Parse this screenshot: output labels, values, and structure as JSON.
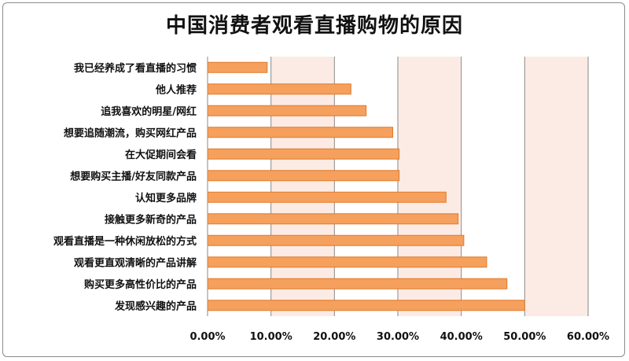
{
  "chart_data": {
    "type": "bar",
    "orientation": "horizontal",
    "title": "中国消费者观看直播购物的原因",
    "xlabel": "",
    "ylabel": "",
    "xlim": [
      0,
      0.6
    ],
    "tick_values": [
      0,
      0.1,
      0.2,
      0.3,
      0.4,
      0.5,
      0.6
    ],
    "tick_labels": [
      "0.00%",
      "10.00%",
      "20.00%",
      "30.00%",
      "40.00%",
      "50.00%",
      "60.00%"
    ],
    "grid": true,
    "legend": "none",
    "categories": [
      "我已经养成了看直播的习惯",
      "他人推荐",
      "追我喜欢的明星/网红",
      "想要追随潮流，购买网红产品",
      "在大促期间会看",
      "想要购买主播/好友同款产品",
      "认知更多品牌",
      "接触更多新奇的产品",
      "观看直播是一种休闲放松的方式",
      "观看更直观清晰的产品讲解",
      "购买更多高性价比的产品",
      "发现感兴趣的产品"
    ],
    "values": [
      0.094,
      0.226,
      0.25,
      0.292,
      0.302,
      0.302,
      0.376,
      0.395,
      0.404,
      0.44,
      0.472,
      0.5
    ]
  },
  "colors": {
    "bar_fill": "#f5a05c",
    "bar_stroke": "#e07a2c",
    "plot_band": "#fcebe4",
    "grid": "#8a8a8a",
    "text": "#111111"
  }
}
